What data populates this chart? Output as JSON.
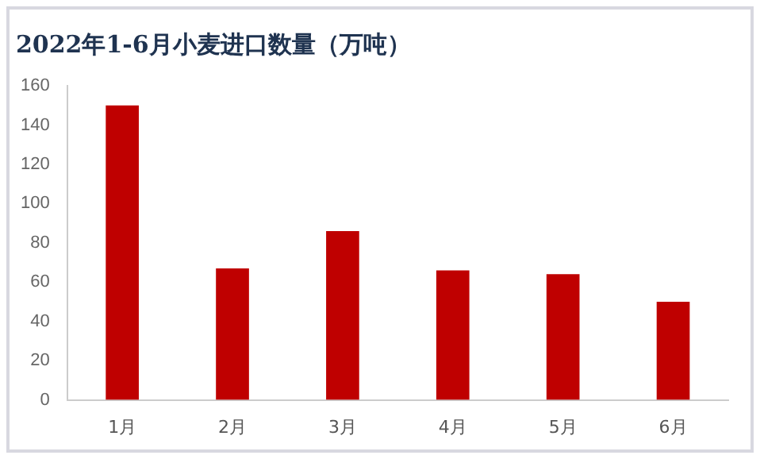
{
  "chart_data": {
    "type": "bar",
    "title": "2022年1-6月小麦进口数量（万吨）",
    "categories": [
      "1月",
      "2月",
      "3月",
      "4月",
      "5月",
      "6月"
    ],
    "values": [
      150,
      67,
      86,
      66,
      64,
      50
    ],
    "color": "#bf0000",
    "ylim": [
      0,
      160
    ],
    "yticks": [
      0,
      20,
      40,
      60,
      80,
      100,
      120,
      140,
      160
    ],
    "grid": false,
    "legend": false
  }
}
